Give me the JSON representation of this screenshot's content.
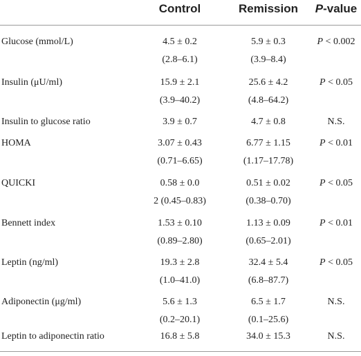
{
  "table": {
    "headers": {
      "control": "Control",
      "remission": "Remission",
      "pvalue_italic": "P",
      "pvalue_rest": "-value"
    },
    "rows": [
      {
        "label": "Glucose (mmol/L)",
        "control_mean": "4.5 ± 0.2",
        "control_range": "(2.8–6.1)",
        "remission_mean": "5.9 ± 0.3",
        "remission_range": "(3.9–8.4)",
        "p_symbol": "P",
        "p_rest": " < 0.002"
      },
      {
        "label": "Insulin (μU/ml)",
        "control_mean": "15.9 ± 2.1",
        "control_range": "(3.9–40.2)",
        "remission_mean": "25.6 ± 4.2",
        "remission_range": "(4.8–64.2)",
        "p_symbol": "P",
        "p_rest": " < 0.05"
      },
      {
        "label": "Insulin to glucose ratio",
        "control_mean": "3.9 ± 0.7",
        "control_range": "",
        "remission_mean": "4.7 ± 0.8",
        "remission_range": "",
        "p_symbol": "",
        "p_rest": "N.S."
      },
      {
        "label": "HOMA",
        "control_mean": "3.07 ± 0.43",
        "control_range": "(0.71–6.65)",
        "remission_mean": "6.77 ± 1.15",
        "remission_range": "(1.17–17.78)",
        "p_symbol": "P",
        "p_rest": " < 0.01"
      },
      {
        "label": "QUICKI",
        "control_mean": "0.58 ± 0.0",
        "control_range": "2 (0.45–0.83)",
        "remission_mean": "0.51 ± 0.02",
        "remission_range": "(0.38–0.70)",
        "p_symbol": "P",
        "p_rest": " < 0.05"
      },
      {
        "label": "Bennett index",
        "control_mean": "1.53 ± 0.10",
        "control_range": "(0.89–2.80)",
        "remission_mean": "1.13 ± 0.09",
        "remission_range": "(0.65–2.01)",
        "p_symbol": "P",
        "p_rest": " < 0.01"
      },
      {
        "label": "Leptin (ng/ml)",
        "control_mean": "19.3 ± 2.8",
        "control_range": "(1.0–41.0)",
        "remission_mean": "32.4 ± 5.4",
        "remission_range": "(6.8–87.7)",
        "p_symbol": "P",
        "p_rest": " < 0.05"
      },
      {
        "label": "Adiponectin (μg/ml)",
        "control_mean": "5.6 ± 1.3",
        "control_range": "(0.2–20.1)",
        "remission_mean": "6.5 ± 1.7",
        "remission_range": "(0.1–25.6)",
        "p_symbol": "",
        "p_rest": "N.S."
      },
      {
        "label": "Leptin to adiponectin ratio",
        "control_mean": "16.8 ± 5.8",
        "control_range": "",
        "remission_mean": "34.0 ± 15.3",
        "remission_range": "",
        "p_symbol": "",
        "p_rest": "N.S."
      }
    ]
  }
}
